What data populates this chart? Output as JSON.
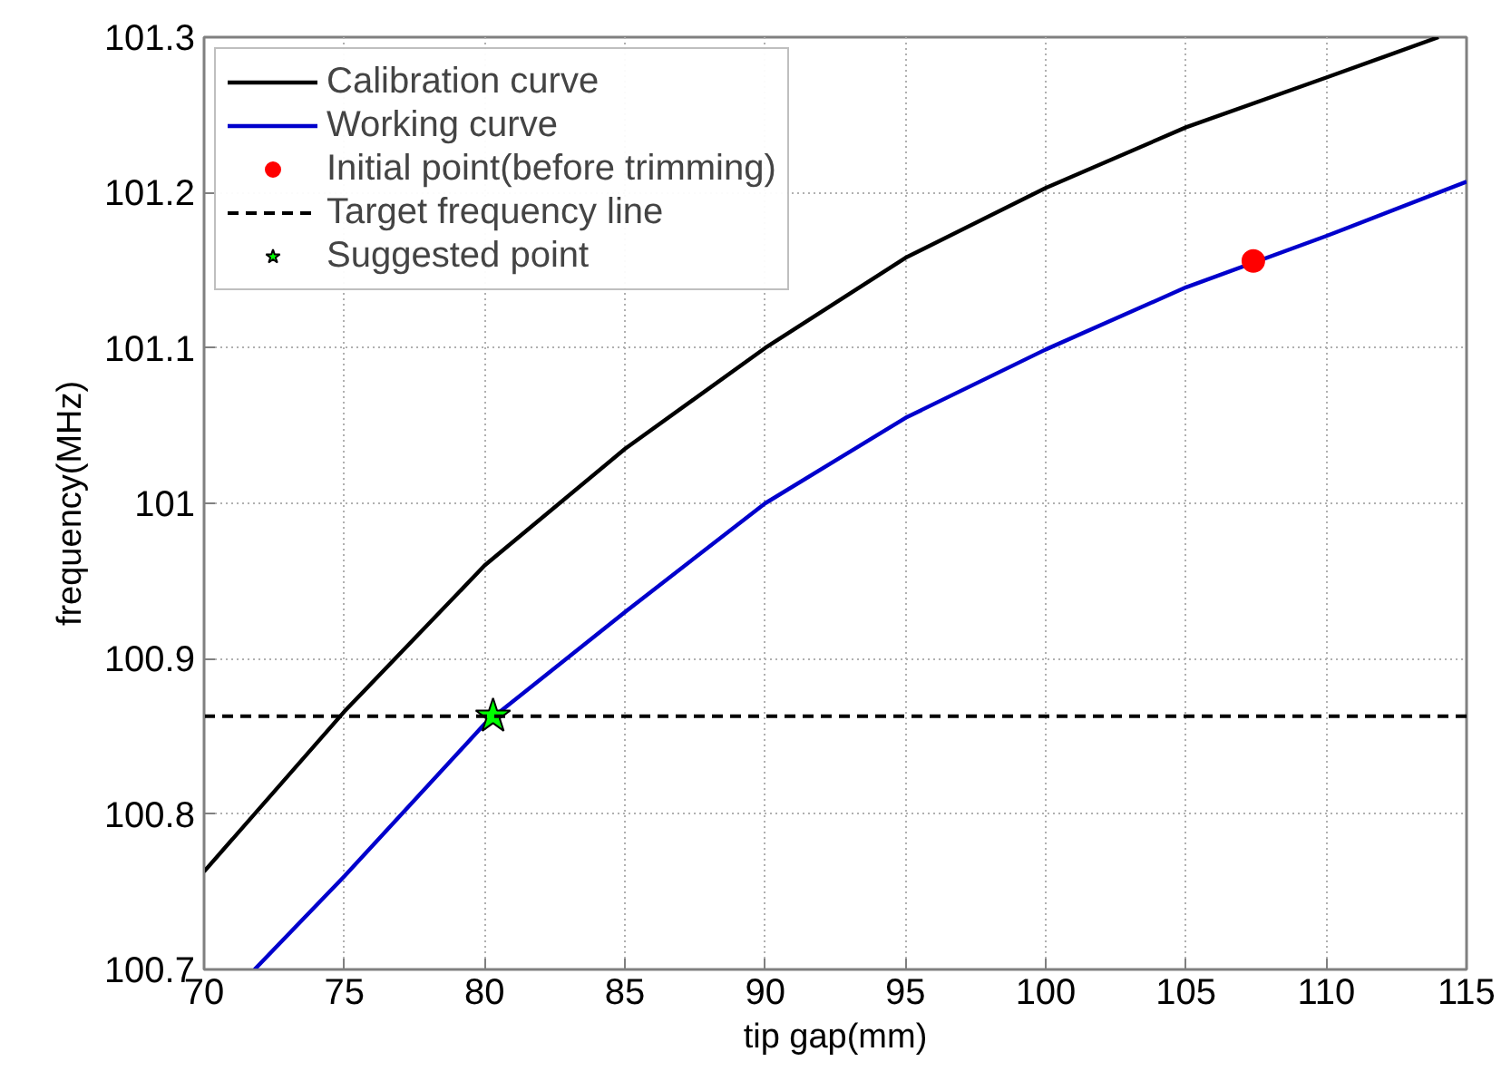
{
  "chart_data": {
    "type": "line",
    "xlabel": "tip gap(mm)",
    "ylabel": "frequency(MHz)",
    "xlim": [
      70,
      115
    ],
    "ylim": [
      100.7,
      101.3
    ],
    "xticks": [
      70,
      75,
      80,
      85,
      90,
      95,
      100,
      105,
      110,
      115
    ],
    "yticks": [
      100.7,
      100.8,
      100.9,
      101,
      101.1,
      101.2,
      101.3
    ],
    "grid": true,
    "legend": "top left",
    "series": [
      {
        "name": "Calibration curve",
        "color": "#000000",
        "x": [
          70,
          75,
          80,
          85,
          90,
          95,
          100,
          105,
          110,
          114
        ],
        "values": [
          100.763,
          100.866,
          100.96,
          101.035,
          101.1,
          101.158,
          101.203,
          101.242,
          101.274,
          101.3
        ]
      },
      {
        "name": "Working curve",
        "color": "#0000cc",
        "x": [
          71.8,
          75,
          80,
          85,
          90,
          95,
          100,
          105,
          110,
          115
        ],
        "values": [
          100.7,
          100.76,
          100.858,
          100.93,
          101.0,
          101.055,
          101.099,
          101.139,
          101.172,
          101.207
        ]
      },
      {
        "name": "Initial point(before trimming)",
        "type": "scatter",
        "marker": "circle",
        "color": "#ff0000",
        "x": [
          107.4
        ],
        "values": [
          101.156
        ]
      },
      {
        "name": "Suggested point",
        "type": "scatter",
        "marker": "star",
        "color": "#00ff00",
        "x": [
          80.3
        ],
        "values": [
          100.863
        ]
      }
    ],
    "ref_lines": [
      {
        "axis": "y",
        "value": 100.863,
        "label": "Target frequency line",
        "color": "#000000",
        "line_style": "dashed"
      }
    ]
  }
}
